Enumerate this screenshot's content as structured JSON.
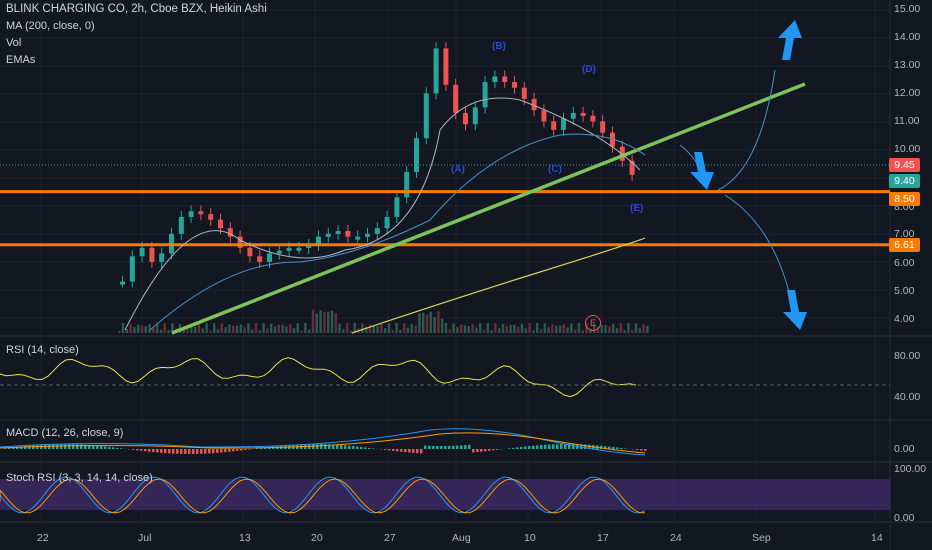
{
  "header": {
    "symbol_line": "BLINK CHARGING CO, 2h, Cboe BZX, Heikin Ashi",
    "indicators": [
      "MA (200, close, 0)",
      "Vol",
      "EMAs"
    ]
  },
  "panes": {
    "rsi_title": "RSI (14, close)",
    "macd_title": "MACD (12, 26, close, 9)",
    "stoch_title": "Stoch RSI (3, 3, 14, 14, close)"
  },
  "price_axis": {
    "labels": [
      "15.00",
      "14.00",
      "13.00",
      "12.00",
      "11.00",
      "10.00",
      "9.00",
      "8.00",
      "7.00",
      "6.00",
      "5.00",
      "4.00"
    ],
    "tags": [
      {
        "text": "9.45",
        "color": "#ef5350"
      },
      {
        "text": "9.40",
        "color": "#26a69a"
      },
      {
        "text": "8.50",
        "color": "#f57c00"
      },
      {
        "text": "6.61",
        "color": "#f57c00"
      }
    ]
  },
  "rsi_axis": [
    "80.00",
    "40.00"
  ],
  "macd_axis": [
    "0.00"
  ],
  "stoch_axis": [
    "100.00",
    "0.00"
  ],
  "time_axis": [
    "22",
    "Jul",
    "13",
    "20",
    "27",
    "Aug",
    "10",
    "17",
    "24",
    "Sep",
    "14"
  ],
  "earnings_marker": "E",
  "annotations": [
    "(B)",
    "(D)",
    "(A)",
    "(C)",
    "(E)"
  ],
  "colors": {
    "background": "#131722",
    "up": "#26a69a",
    "down": "#ef5350",
    "trendline": "#7cc35b",
    "support": "#f57c00",
    "ma200": "#d9d35a",
    "arrow": "#2196f3",
    "rsi": "#e8e44a",
    "stoch_band": "#3e2a67"
  }
}
